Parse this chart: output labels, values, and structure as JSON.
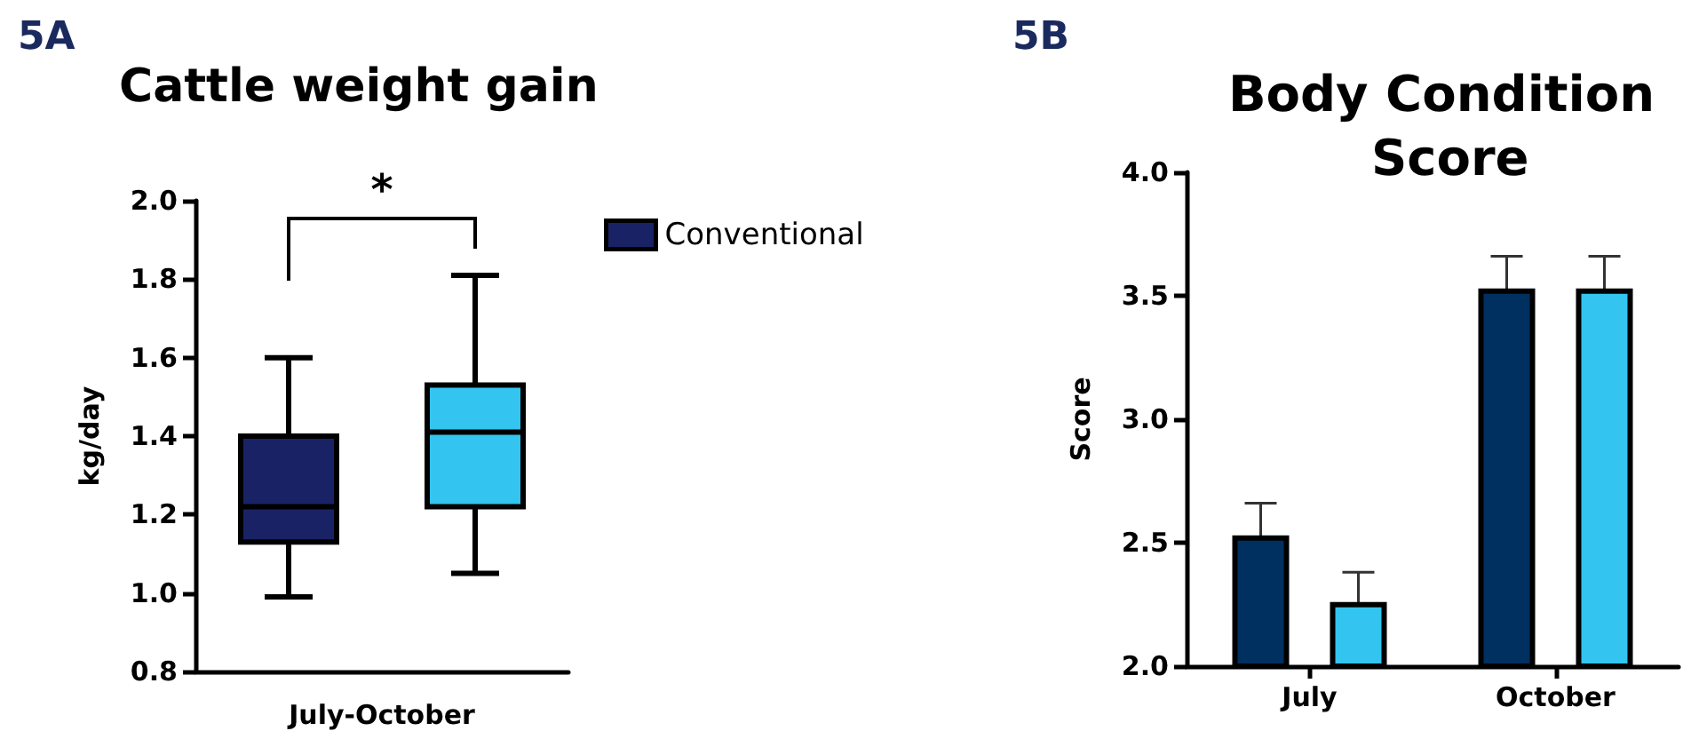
{
  "chart_data": [
    {
      "type": "box",
      "title": "Cattle weight gain",
      "ylabel": "kg/day",
      "xlabel": "July-October",
      "categories": [
        null,
        null
      ],
      "tick_labels": "y",
      "annotations": [
        "5A",
        "*"
      ],
      "legend": "right",
      "grid": false,
      "ylim": [
        0.8,
        2.0
      ],
      "yticks": [
        {
          "value": 0.8,
          "label": "0.8"
        },
        {
          "value": 1.0,
          "label": "1.0"
        },
        {
          "value": 1.2,
          "label": "1.2"
        },
        {
          "value": 1.4,
          "label": "1.4"
        },
        {
          "value": 1.6,
          "label": "1.6"
        },
        {
          "value": 1.8,
          "label": "1.8"
        },
        {
          "value": 2.0,
          "label": "2.0"
        }
      ],
      "series": [
        {
          "name": "Conventional",
          "color": "#1a2266",
          "boxes": [
            {
              "low": 0.99,
              "q1": 1.13,
              "median": 1.22,
              "q3": 1.4,
              "high": 1.6
            },
            null
          ]
        },
        {
          "color": "#33c4f0",
          "boxes": [
            null,
            {
              "low": 1.05,
              "q1": 1.22,
              "median": 1.41,
              "q3": 1.53,
              "high": 1.81
            }
          ]
        }
      ]
    },
    {
      "type": "bar",
      "title": "Body Condition Score",
      "ylabel": "Score",
      "categories": [
        "July",
        "October"
      ],
      "annotations": [
        "5B"
      ],
      "legend": false,
      "grid": false,
      "ylim": [
        2.0,
        4.0
      ],
      "yticks": [
        {
          "value": 2.0,
          "label": "2.0"
        },
        {
          "value": 2.5,
          "label": "2.5"
        },
        {
          "value": 3.0,
          "label": "3.0"
        },
        {
          "value": 3.5,
          "label": "3.5"
        },
        {
          "value": 4.0,
          "label": "4.0"
        }
      ],
      "series": [
        {
          "color": "#003060",
          "values": [
            2.53,
            3.53
          ],
          "errors": [
            0.13,
            0.13
          ]
        },
        {
          "color": "#33c4f0",
          "values": [
            2.26,
            3.53
          ],
          "errors": [
            0.12,
            0.13
          ]
        }
      ]
    }
  ]
}
